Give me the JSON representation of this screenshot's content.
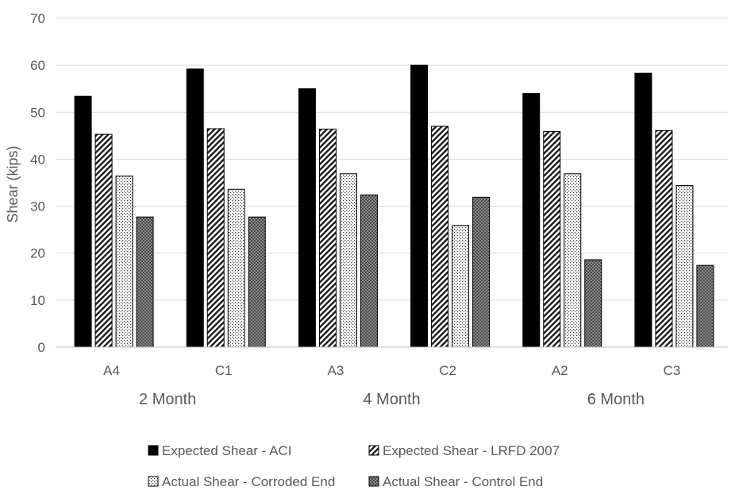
{
  "chart_data": {
    "type": "bar",
    "title": "",
    "xlabel": "",
    "ylabel": "Shear (kips)",
    "ylim": [
      0,
      70
    ],
    "yticks": [
      0,
      10,
      20,
      30,
      40,
      50,
      60,
      70
    ],
    "grid": true,
    "categories": [
      "A4",
      "C1",
      "A3",
      "C2",
      "A2",
      "C3"
    ],
    "groups": [
      {
        "label": "2 Month",
        "categories": [
          "A4",
          "C1"
        ]
      },
      {
        "label": "4 Month",
        "categories": [
          "A3",
          "C2"
        ]
      },
      {
        "label": "6 Month",
        "categories": [
          "A2",
          "C3"
        ]
      }
    ],
    "legend_position": "bottom",
    "series": [
      {
        "name": "Expected Shear - ACI",
        "pattern": "solid",
        "color": "#000000",
        "values": [
          53.4,
          59.2,
          55.0,
          60.0,
          54.0,
          58.3
        ]
      },
      {
        "name": "Expected Shear - LRFD 2007",
        "pattern": "diagonal",
        "color": "#000000",
        "values": [
          45.3,
          46.5,
          46.4,
          47.0,
          45.9,
          46.1
        ]
      },
      {
        "name": "Actual Shear - Corroded End",
        "pattern": "dotted",
        "color": "#000000",
        "values": [
          36.4,
          33.6,
          36.9,
          25.9,
          36.9,
          34.4
        ]
      },
      {
        "name": "Actual Shear - Control End",
        "pattern": "checker",
        "color": "#000000",
        "values": [
          27.7,
          27.7,
          32.4,
          31.9,
          18.6,
          17.4
        ]
      }
    ]
  }
}
